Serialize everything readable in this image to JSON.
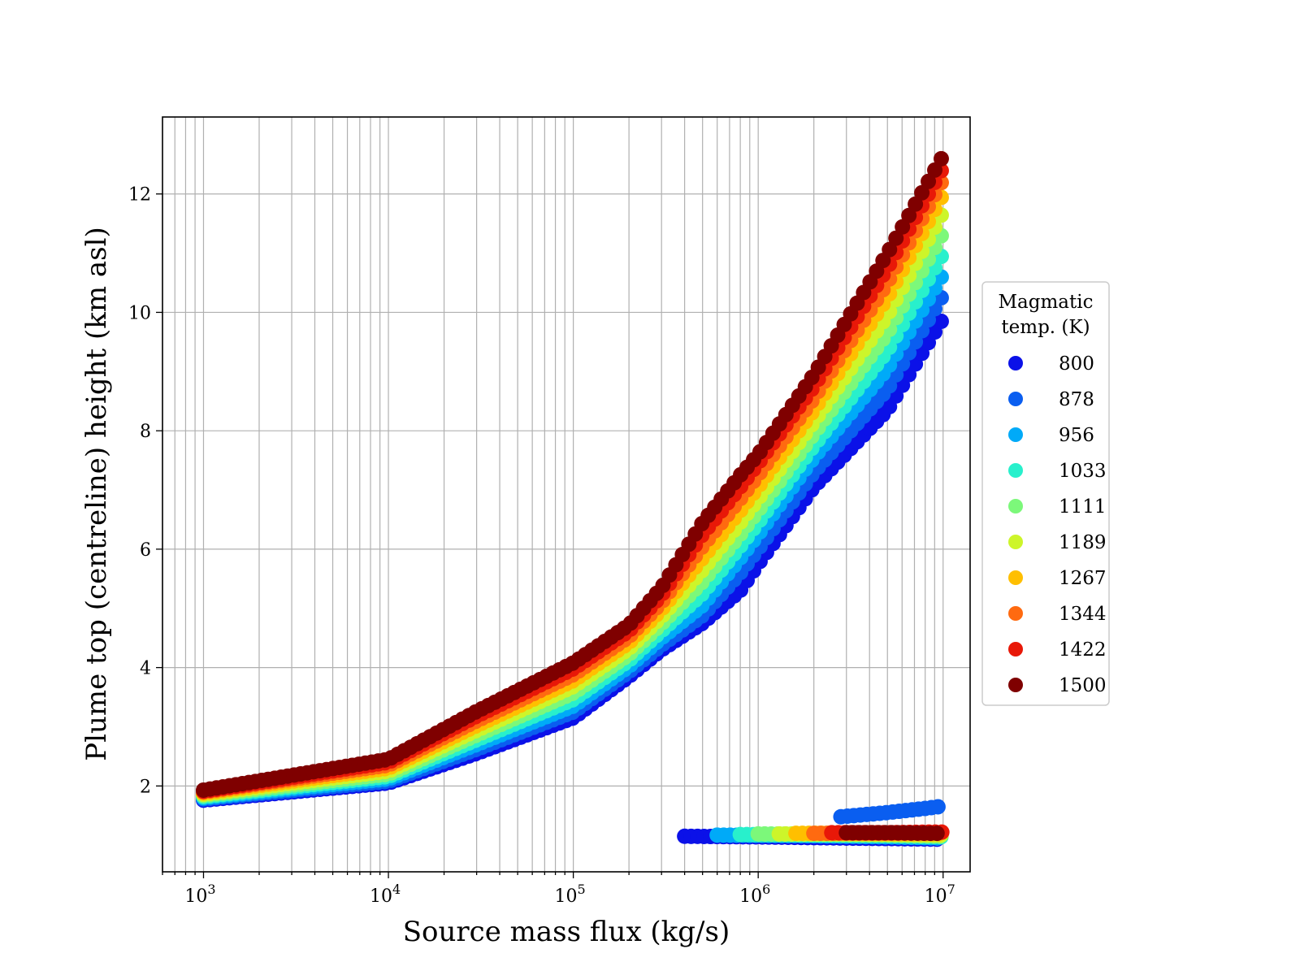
{
  "chart_data": {
    "type": "scatter",
    "xlabel": "Source mass flux (kg/s)",
    "ylabel": "Plume top (centreline) height (km asl)",
    "x_scale": "log",
    "xlim": [
      600,
      14000000
    ],
    "ylim": [
      0.55,
      13.3
    ],
    "grid": true,
    "x_ticks": [
      {
        "value": 1000,
        "base": "10",
        "exp": "3"
      },
      {
        "value": 10000,
        "base": "10",
        "exp": "4"
      },
      {
        "value": 100000,
        "base": "10",
        "exp": "5"
      },
      {
        "value": 1000000,
        "base": "10",
        "exp": "6"
      },
      {
        "value": 10000000,
        "base": "10",
        "exp": "7"
      }
    ],
    "y_ticks": [
      2,
      4,
      6,
      8,
      10,
      12
    ],
    "legend": {
      "title_lines": [
        "Magmatic",
        "temp. (K)"
      ],
      "placement": "right, outside plot"
    },
    "series": [
      {
        "name": "800",
        "color": "#0b11e8",
        "points": [
          [
            1000,
            1.76
          ],
          [
            10000,
            2.05
          ],
          [
            30000,
            2.55
          ],
          [
            100000,
            3.15
          ],
          [
            200000,
            3.85
          ],
          [
            300000,
            4.3
          ],
          [
            500000,
            4.75
          ],
          [
            800000,
            5.3
          ],
          [
            1000000,
            5.75
          ],
          [
            2000000,
            7.05
          ],
          [
            5000000,
            8.35
          ],
          [
            10000000,
            9.9
          ]
        ],
        "branch": [
          [
            400000,
            1.15
          ],
          [
            1000000,
            1.14
          ],
          [
            3000000,
            1.12
          ],
          [
            10000000,
            1.1
          ]
        ]
      },
      {
        "name": "878",
        "color": "#0a5ef0",
        "points": [
          [
            1000,
            1.78
          ],
          [
            10000,
            2.08
          ],
          [
            30000,
            2.62
          ],
          [
            100000,
            3.25
          ],
          [
            200000,
            3.93
          ],
          [
            300000,
            4.38
          ],
          [
            500000,
            4.88
          ],
          [
            800000,
            5.6
          ],
          [
            1000000,
            6.0
          ],
          [
            2000000,
            7.3
          ],
          [
            5000000,
            8.7
          ],
          [
            10000000,
            10.3
          ]
        ],
        "branch": [
          [
            2800000,
            1.48
          ],
          [
            5000000,
            1.55
          ],
          [
            8000000,
            1.62
          ],
          [
            10000000,
            1.66
          ]
        ]
      },
      {
        "name": "956",
        "color": "#00aaf8",
        "points": [
          [
            1000,
            1.8
          ],
          [
            10000,
            2.12
          ],
          [
            30000,
            2.7
          ],
          [
            100000,
            3.35
          ],
          [
            200000,
            4.02
          ],
          [
            300000,
            4.5
          ],
          [
            500000,
            5.05
          ],
          [
            800000,
            5.85
          ],
          [
            1000000,
            6.25
          ],
          [
            2000000,
            7.55
          ],
          [
            5000000,
            9.05
          ],
          [
            10000000,
            10.65
          ]
        ],
        "branch": [
          [
            600000,
            1.17
          ],
          [
            2000000,
            1.16
          ],
          [
            5000000,
            1.14
          ],
          [
            10000000,
            1.12
          ]
        ]
      },
      {
        "name": "1033",
        "color": "#28f0cc",
        "points": [
          [
            1000,
            1.82
          ],
          [
            10000,
            2.16
          ],
          [
            30000,
            2.78
          ],
          [
            100000,
            3.46
          ],
          [
            200000,
            4.12
          ],
          [
            300000,
            4.62
          ],
          [
            500000,
            5.25
          ],
          [
            800000,
            6.05
          ],
          [
            1000000,
            6.45
          ],
          [
            2000000,
            7.75
          ],
          [
            5000000,
            9.35
          ],
          [
            10000000,
            11.0
          ]
        ],
        "branch": [
          [
            800000,
            1.18
          ],
          [
            2000000,
            1.17
          ],
          [
            5000000,
            1.16
          ],
          [
            10000000,
            1.14
          ]
        ]
      },
      {
        "name": "1111",
        "color": "#7cf87a",
        "points": [
          [
            1000,
            1.84
          ],
          [
            10000,
            2.2
          ],
          [
            30000,
            2.86
          ],
          [
            100000,
            3.57
          ],
          [
            200000,
            4.22
          ],
          [
            300000,
            4.74
          ],
          [
            500000,
            5.45
          ],
          [
            800000,
            6.25
          ],
          [
            1000000,
            6.65
          ],
          [
            2000000,
            7.95
          ],
          [
            5000000,
            9.65
          ],
          [
            10000000,
            11.35
          ]
        ],
        "branch": [
          [
            1000000,
            1.19
          ],
          [
            2500000,
            1.18
          ],
          [
            5000000,
            1.17
          ],
          [
            10000000,
            1.15
          ]
        ]
      },
      {
        "name": "1189",
        "color": "#cdf52a",
        "points": [
          [
            1000,
            1.86
          ],
          [
            10000,
            2.25
          ],
          [
            30000,
            2.94
          ],
          [
            100000,
            3.68
          ],
          [
            200000,
            4.32
          ],
          [
            300000,
            4.86
          ],
          [
            500000,
            5.65
          ],
          [
            800000,
            6.45
          ],
          [
            1000000,
            6.85
          ],
          [
            2000000,
            8.15
          ],
          [
            5000000,
            9.95
          ],
          [
            10000000,
            11.7
          ]
        ],
        "branch": [
          [
            1300000,
            1.19
          ],
          [
            3000000,
            1.19
          ],
          [
            6000000,
            1.18
          ],
          [
            10000000,
            1.17
          ]
        ]
      },
      {
        "name": "1267",
        "color": "#ffbf00",
        "points": [
          [
            1000,
            1.88
          ],
          [
            10000,
            2.3
          ],
          [
            30000,
            3.02
          ],
          [
            100000,
            3.78
          ],
          [
            200000,
            4.42
          ],
          [
            300000,
            4.98
          ],
          [
            500000,
            5.85
          ],
          [
            800000,
            6.65
          ],
          [
            1000000,
            7.05
          ],
          [
            2000000,
            8.35
          ],
          [
            5000000,
            10.25
          ],
          [
            10000000,
            12.0
          ]
        ],
        "branch": [
          [
            1600000,
            1.2
          ],
          [
            3500000,
            1.2
          ],
          [
            7000000,
            1.19
          ],
          [
            10000000,
            1.19
          ]
        ]
      },
      {
        "name": "1344",
        "color": "#ff6a10",
        "points": [
          [
            1000,
            1.9
          ],
          [
            10000,
            2.35
          ],
          [
            30000,
            3.1
          ],
          [
            100000,
            3.88
          ],
          [
            200000,
            4.52
          ],
          [
            300000,
            5.1
          ],
          [
            500000,
            6.05
          ],
          [
            800000,
            6.85
          ],
          [
            1000000,
            7.25
          ],
          [
            2000000,
            8.55
          ],
          [
            5000000,
            10.5
          ],
          [
            10000000,
            12.25
          ]
        ],
        "branch": [
          [
            2000000,
            1.2
          ],
          [
            4000000,
            1.2
          ],
          [
            7500000,
            1.2
          ],
          [
            10000000,
            1.2
          ]
        ]
      },
      {
        "name": "1422",
        "color": "#e81808",
        "points": [
          [
            1000,
            1.91
          ],
          [
            10000,
            2.4
          ],
          [
            30000,
            3.18
          ],
          [
            100000,
            3.98
          ],
          [
            200000,
            4.62
          ],
          [
            300000,
            5.22
          ],
          [
            500000,
            6.25
          ],
          [
            800000,
            7.05
          ],
          [
            1000000,
            7.45
          ],
          [
            2000000,
            8.75
          ],
          [
            5000000,
            10.75
          ],
          [
            10000000,
            12.45
          ]
        ],
        "branch": [
          [
            2500000,
            1.21
          ],
          [
            5000000,
            1.21
          ],
          [
            8000000,
            1.22
          ],
          [
            10000000,
            1.22
          ]
        ]
      },
      {
        "name": "1500",
        "color": "#7f0000",
        "points": [
          [
            1000,
            1.93
          ],
          [
            10000,
            2.45
          ],
          [
            30000,
            3.26
          ],
          [
            100000,
            4.08
          ],
          [
            200000,
            4.72
          ],
          [
            300000,
            5.35
          ],
          [
            500000,
            6.45
          ],
          [
            800000,
            7.25
          ],
          [
            1000000,
            7.6
          ],
          [
            2000000,
            8.95
          ],
          [
            5000000,
            11.0
          ],
          [
            10000000,
            12.65
          ]
        ],
        "branch": [
          [
            3000000,
            1.21
          ],
          [
            5500000,
            1.21
          ],
          [
            9000000,
            1.2
          ],
          [
            10000000,
            1.2
          ]
        ]
      }
    ]
  }
}
